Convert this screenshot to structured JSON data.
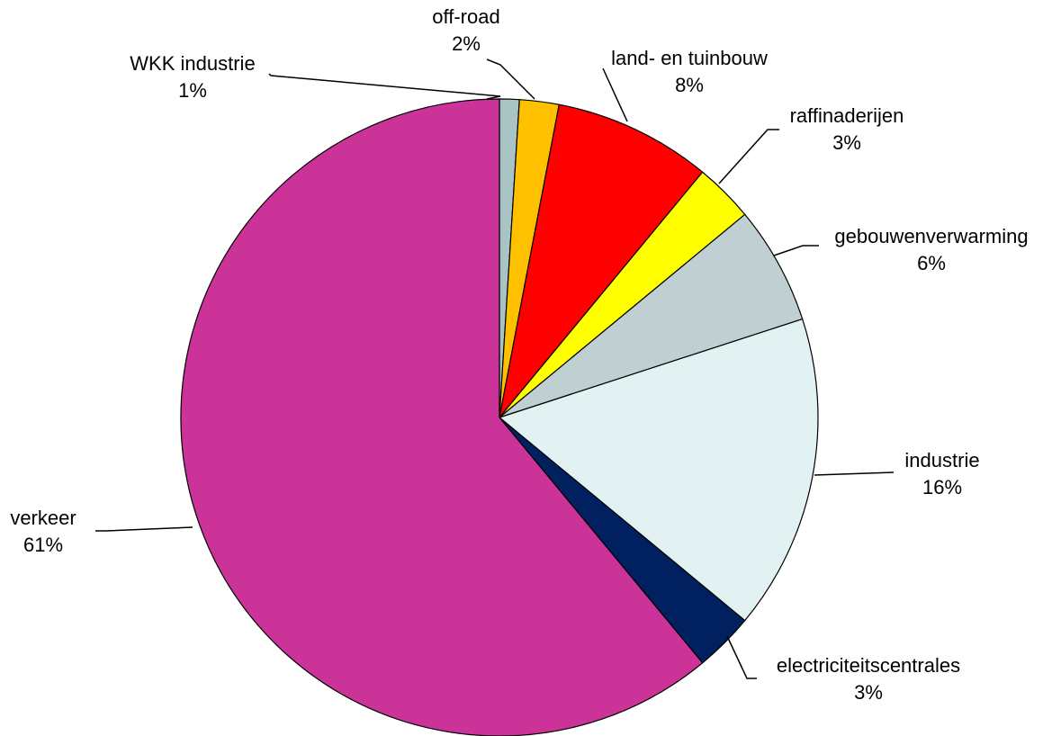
{
  "chart_data": {
    "type": "pie",
    "title": "",
    "slices": [
      {
        "label": "WKK industrie",
        "value": 1,
        "value_label": "1%",
        "color": "#A8C4C4"
      },
      {
        "label": "off-road",
        "value": 2,
        "value_label": "2%",
        "color": "#FFC000"
      },
      {
        "label": "land- en tuinbouw",
        "value": 8,
        "value_label": "8%",
        "color": "#FF0000"
      },
      {
        "label": "raffinaderijen",
        "value": 3,
        "value_label": "3%",
        "color": "#FFFF00"
      },
      {
        "label": "gebouwenverwarming",
        "value": 6,
        "value_label": "6%",
        "color": "#C0D0D2"
      },
      {
        "label": "industrie",
        "value": 16,
        "value_label": "16%",
        "color": "#E2F2F2"
      },
      {
        "label": "electriciteitscentrales",
        "value": 3,
        "value_label": "3%",
        "color": "#002060"
      },
      {
        "label": "verkeer",
        "value": 61,
        "value_label": "61%",
        "color": "#CC3399"
      }
    ],
    "start_angle_deg": 0,
    "direction": "clockwise",
    "legend": "none",
    "data_labels": "outside-with-leader-lines"
  }
}
